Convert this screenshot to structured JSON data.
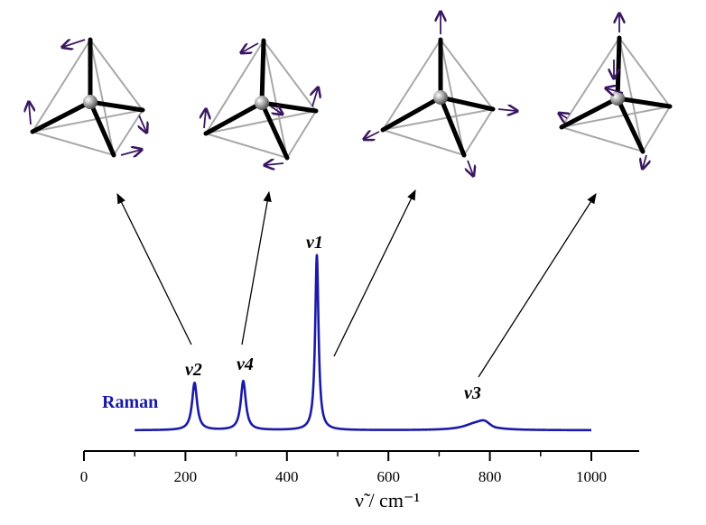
{
  "chart_data": {
    "type": "line",
    "xlabel": "ν̃ / cm⁻¹",
    "xlim": [
      0,
      1050
    ],
    "xticks": [
      0,
      200,
      400,
      600,
      800,
      1000
    ],
    "grid": false,
    "series": [
      {
        "name": "Raman",
        "color": "#1a1aa8",
        "peaks": [
          {
            "label": "ν2",
            "center": 218,
            "height": 0.27,
            "width": 6
          },
          {
            "label": "ν4",
            "center": 314,
            "height": 0.28,
            "width": 6
          },
          {
            "label": "ν1",
            "center": 459,
            "height": 1.0,
            "width": 4
          },
          {
            "label": "ν3",
            "center": 775,
            "height": 0.045,
            "width": 28
          }
        ],
        "x_range": [
          100,
          1000
        ]
      }
    ],
    "peak_labels": {
      "nu2": "ν2",
      "nu4": "ν4",
      "nu1": "ν1",
      "nu3": "ν3"
    },
    "modes": [
      "nu2-mode-diagram",
      "nu4-mode-diagram",
      "nu1-mode-diagram",
      "nu3-mode-diagram"
    ],
    "colors": {
      "spectrum": "#1a1aa8",
      "arrow": "#3a1660",
      "bond": "#000000",
      "edge": "#a8a8a8"
    }
  }
}
